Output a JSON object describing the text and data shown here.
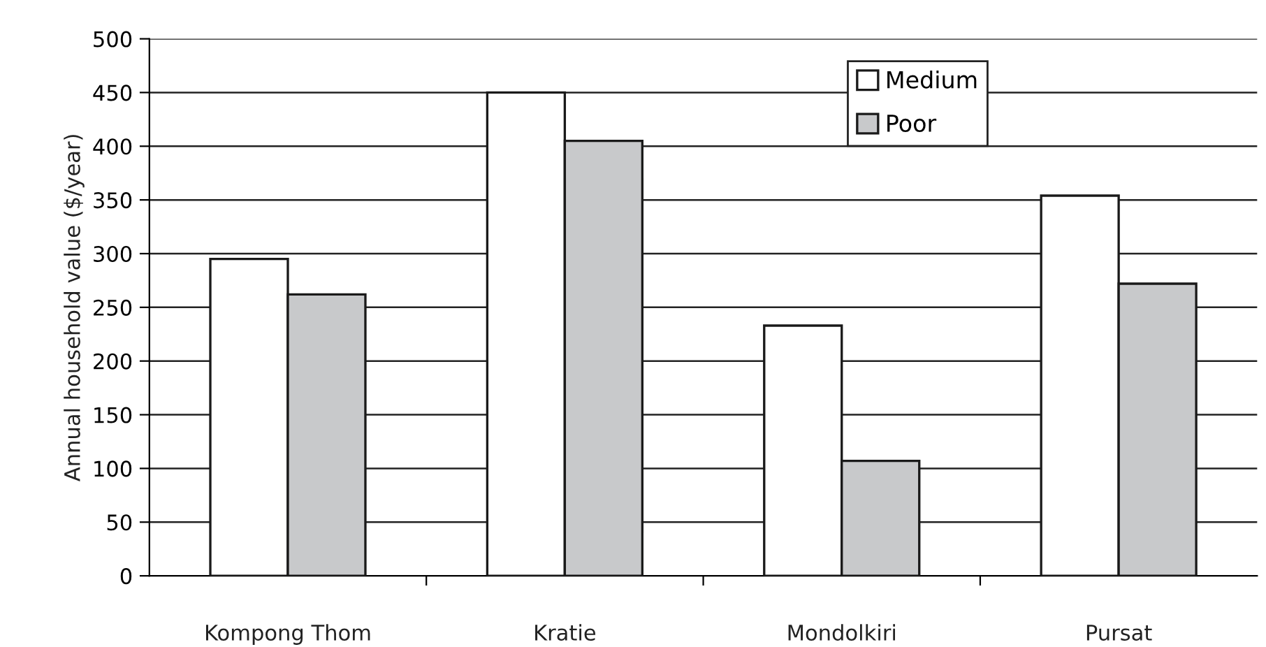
{
  "chart_data": {
    "type": "bar",
    "ylabel": "Annual household value ($/year)",
    "categories": [
      "Kompong Thom",
      "Kratie",
      "Mondolkiri",
      "Pursat"
    ],
    "series": [
      {
        "name": "Medium",
        "color": "#ffffff",
        "values": [
          295,
          450,
          233,
          354
        ]
      },
      {
        "name": "Poor",
        "color": "#c8c9cb",
        "values": [
          262,
          405,
          107,
          272
        ]
      }
    ],
    "ylim": [
      0,
      500
    ],
    "yticks": [
      0,
      50,
      100,
      150,
      200,
      250,
      300,
      350,
      400,
      450,
      500
    ],
    "grid": "y",
    "legend": "top right"
  }
}
